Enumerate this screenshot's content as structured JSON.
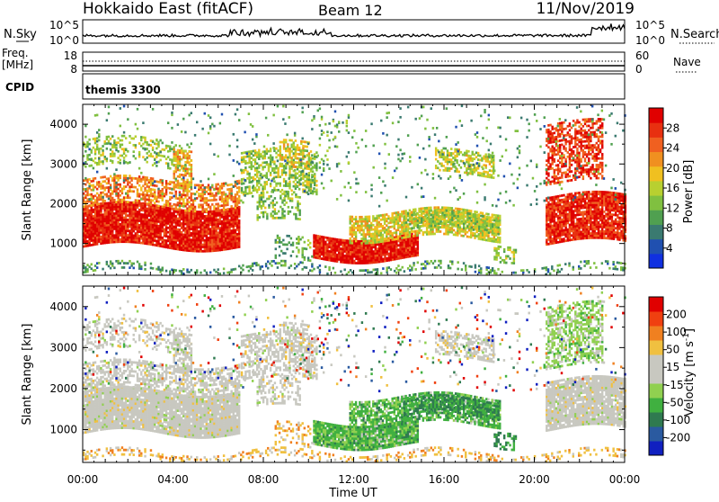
{
  "header": {
    "title": "Hokkaido East (fitACF)",
    "beam": "Beam 12",
    "date": "11/Nov/2019"
  },
  "noise_panel": {
    "left_label": "N.Sky",
    "right_label": "N.Search",
    "ticks": [
      "10^5",
      "10^0"
    ],
    "right_ticks": [
      "10^5",
      "10^0"
    ]
  },
  "freq_panel": {
    "left_label_line1": "Freq.",
    "left_label_line2": "[MHz]",
    "left_ticks": [
      "18",
      "8"
    ],
    "right_ticks": [
      "60",
      "0"
    ],
    "right_label": "Nave"
  },
  "cpid_panel": {
    "label": "CPID",
    "program": "themis 3300"
  },
  "x_axis": {
    "label": "Time UT",
    "ticks": [
      "00:00",
      "04:00",
      "08:00",
      "12:00",
      "16:00",
      "20:00",
      "00:00"
    ]
  },
  "chart_data": [
    {
      "type": "heatmap",
      "name": "power",
      "ylabel": "Slant Range [km]",
      "yticks": [
        "1000",
        "2000",
        "3000",
        "4000"
      ],
      "ylim": [
        200,
        4500
      ],
      "xlim_hours": [
        0,
        24
      ],
      "colorbar_label": "Power [dB]",
      "colorbar_ticks": [
        "4",
        "8",
        "12",
        "16",
        "20",
        "24",
        "28"
      ],
      "colorbar_colors": [
        "#1030e0",
        "#2050b0",
        "#3a7a70",
        "#50a050",
        "#80c040",
        "#b8d030",
        "#f0c020",
        "#f09020",
        "#f06020",
        "#e83010",
        "#e00000"
      ]
    },
    {
      "type": "heatmap",
      "name": "velocity",
      "ylabel": "Slant Range [km]",
      "yticks": [
        "1000",
        "2000",
        "3000",
        "4000"
      ],
      "ylim": [
        200,
        4500
      ],
      "xlim_hours": [
        0,
        24
      ],
      "colorbar_label": "Velocity [m s",
      "colorbar_label_sup": "-1",
      "colorbar_label_end": "]",
      "colorbar_ticks": [
        "200",
        "100",
        "50",
        "15",
        "-15",
        "-50",
        "-100",
        "-200"
      ],
      "colorbar_colors": [
        "#1020c0",
        "#2a5aa0",
        "#2f7a50",
        "#40b040",
        "#90d050",
        "#c8c8c0",
        "#c8c8c0",
        "#f0c040",
        "#f08020",
        "#f04010",
        "#e00000"
      ]
    }
  ]
}
